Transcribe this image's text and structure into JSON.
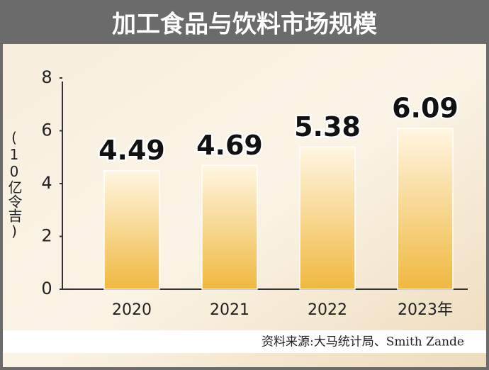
{
  "chart_data": {
    "type": "bar",
    "title": "加工食品与饮料市场规模",
    "y_label": "(10亿令吉)",
    "source": "资料来源:大马统计局、Smith Zande",
    "categories": [
      "2020",
      "2021",
      "2022",
      "2023年"
    ],
    "values": [
      4.49,
      4.69,
      5.38,
      6.09
    ],
    "ylim": [
      0,
      8
    ],
    "yticks": [
      0,
      2,
      4,
      6,
      8
    ]
  }
}
